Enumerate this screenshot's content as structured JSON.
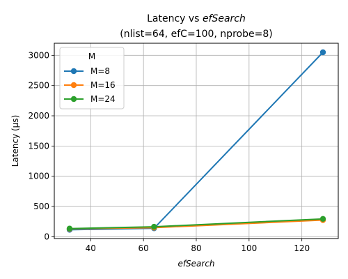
{
  "chart_data": {
    "type": "line",
    "title_line1_prefix": "Latency vs ",
    "title_line1_italic": "efSearch",
    "title_line2": "(nlist=64, efC=100, nprobe=8)",
    "xlabel": "efSearch",
    "ylabel": "Latency (µs)",
    "xlim": [
      26.2,
      133.8
    ],
    "ylim": [
      -30,
      3200
    ],
    "xticks": [
      40,
      60,
      80,
      100,
      120
    ],
    "yticks": [
      0,
      500,
      1000,
      1500,
      2000,
      2500,
      3000
    ],
    "grid": true,
    "legend": {
      "title": "M",
      "placement": "top-left"
    },
    "x": [
      32,
      64,
      128
    ],
    "series": [
      {
        "name": "M=8",
        "color": "#1f77b4",
        "values": [
          115,
          140,
          3050
        ]
      },
      {
        "name": "M=16",
        "color": "#ff7f0e",
        "values": [
          130,
          150,
          275
        ]
      },
      {
        "name": "M=24",
        "color": "#2ca02c",
        "values": [
          135,
          165,
          295
        ]
      }
    ]
  }
}
